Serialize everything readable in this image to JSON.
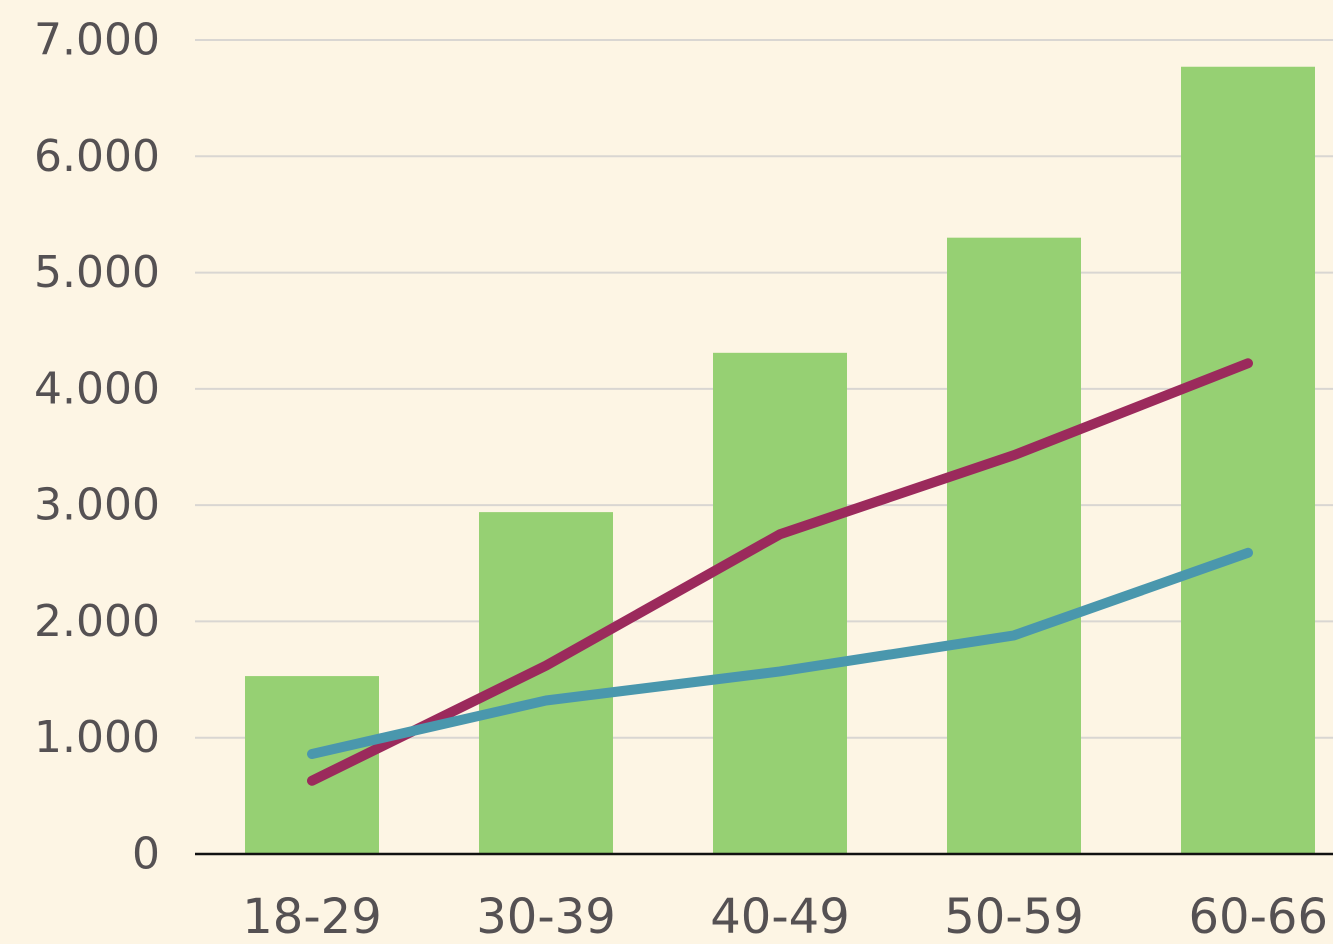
{
  "chart_data": {
    "type": "bar",
    "categories": [
      "18-29",
      "30-39",
      "40-49",
      "50-59",
      "60-66"
    ],
    "ylim": [
      0,
      7000
    ],
    "y_ticks": [
      {
        "value": 0,
        "label": "0"
      },
      {
        "value": 1000,
        "label": "1.000"
      },
      {
        "value": 2000,
        "label": "2.000"
      },
      {
        "value": 3000,
        "label": "3.000"
      },
      {
        "value": 4000,
        "label": "4.000"
      },
      {
        "value": 5000,
        "label": "5.000"
      },
      {
        "value": 6000,
        "label": "6.000"
      },
      {
        "value": 7000,
        "label": "7.000"
      }
    ],
    "grid": true,
    "legend": "none",
    "series": [
      {
        "type": "bar",
        "color": "#96d073",
        "values": [
          1530,
          2940,
          4310,
          5300,
          6770
        ]
      },
      {
        "type": "line",
        "color": "#9b2a5c",
        "values": [
          630,
          1620,
          2750,
          3430,
          4220
        ]
      },
      {
        "type": "line",
        "color": "#4a97ad",
        "values": [
          860,
          1320,
          1570,
          1880,
          2590
        ]
      }
    ],
    "colors": {
      "background": "#fdf5e4",
      "grid": "#d9d6d2",
      "axis": "#111111",
      "text": "#555153"
    }
  }
}
